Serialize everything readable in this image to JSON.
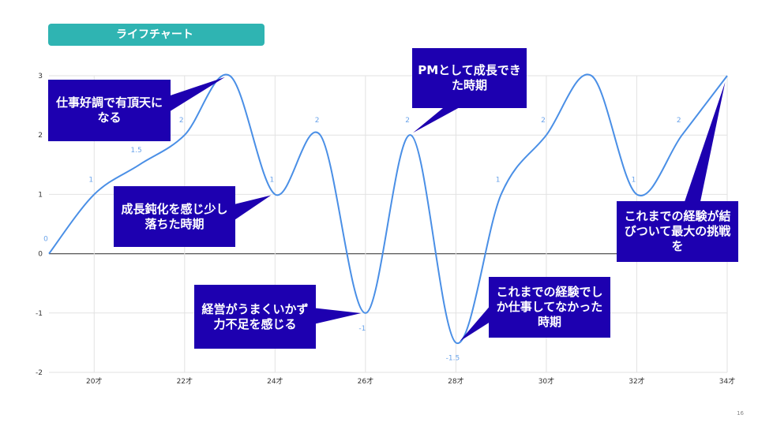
{
  "title": "ライフチャート",
  "page_number": "16",
  "colors": {
    "line": "#4a8fe6",
    "callout": "#1d00b0",
    "title_bar": "#2fb4b2",
    "label": "#6aa3ea"
  },
  "chart_data": {
    "type": "line",
    "x": [
      19,
      20,
      21,
      22,
      23,
      24,
      25,
      26,
      27,
      28,
      29,
      30,
      31,
      32,
      33,
      34
    ],
    "values": [
      0,
      1,
      1.5,
      2,
      3,
      1,
      2,
      -1,
      2,
      -1.5,
      1,
      2,
      3,
      1,
      2,
      3
    ],
    "data_labels": [
      "0",
      "1",
      "1.5",
      "2",
      "",
      "1",
      "2",
      "-1",
      "2",
      "-1.5",
      "1",
      "2",
      "",
      "1",
      "2",
      ""
    ],
    "xlim": [
      19,
      34
    ],
    "ylim": [
      -2,
      3
    ],
    "x_ticks": [
      20,
      22,
      24,
      26,
      28,
      30,
      32,
      34
    ],
    "x_tick_labels": [
      "20才",
      "22才",
      "24才",
      "26才",
      "28才",
      "30才",
      "32才",
      "34才"
    ],
    "y_ticks": [
      3,
      2,
      1,
      0,
      -1,
      -2
    ],
    "y_tick_labels": [
      "3",
      "2",
      "1",
      "0",
      "-1",
      "-2"
    ],
    "grid": true,
    "annotations": [
      {
        "text": "仕事好調で有頂天になる",
        "point_x": 23,
        "point_y": 3
      },
      {
        "text": "成長鈍化を感じ少し落ちた時期",
        "point_x": 24,
        "point_y": 1
      },
      {
        "text": "経営がうまくいかず力不足を感じる",
        "point_x": 26,
        "point_y": -1
      },
      {
        "text": "PMとして成長できた時期",
        "point_x": 27,
        "point_y": 2
      },
      {
        "text": "これまでの経験でしか仕事してなかった時期",
        "point_x": 28,
        "point_y": -1.5
      },
      {
        "text": "これまでの経験が結びついて最大の挑戦を",
        "point_x": 34,
        "point_y": 3
      }
    ]
  }
}
